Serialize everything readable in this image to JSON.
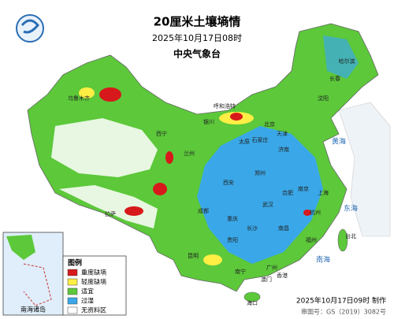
{
  "header": {
    "title": "20厘米土壤墒情",
    "time": "2025年10月17日08时",
    "issuer": "中央气象台"
  },
  "legend": {
    "title": "图例",
    "items": [
      {
        "label": "重度缺墒",
        "color": "#d7191c"
      },
      {
        "label": "轻度缺墒",
        "color": "#ffee44"
      },
      {
        "label": "适宜",
        "color": "#5cc83a"
      },
      {
        "label": "过湿",
        "color": "#3aa8e8"
      },
      {
        "label": "无资料区",
        "color": "#ffffff"
      }
    ]
  },
  "inset": {
    "label": "南海诸岛"
  },
  "places": [
    "北京",
    "天津",
    "石家庄",
    "太原",
    "济南",
    "郑州",
    "西安",
    "兰州",
    "西宁",
    "银川",
    "呼和浩特",
    "沈阳",
    "长春",
    "哈尔滨",
    "南京",
    "上海",
    "合肥",
    "杭州",
    "武汉",
    "长沙",
    "南昌",
    "福州",
    "成都",
    "重庆",
    "贵阳",
    "昆明",
    "南宁",
    "广州",
    "香港",
    "澳门",
    "海口",
    "台北",
    "拉萨",
    "乌鲁木齐",
    "黄海",
    "东海",
    "南海"
  ],
  "footer": {
    "made": "2025年10月17日09时 制作",
    "approval": "审图号：GS（2019）3082号"
  }
}
